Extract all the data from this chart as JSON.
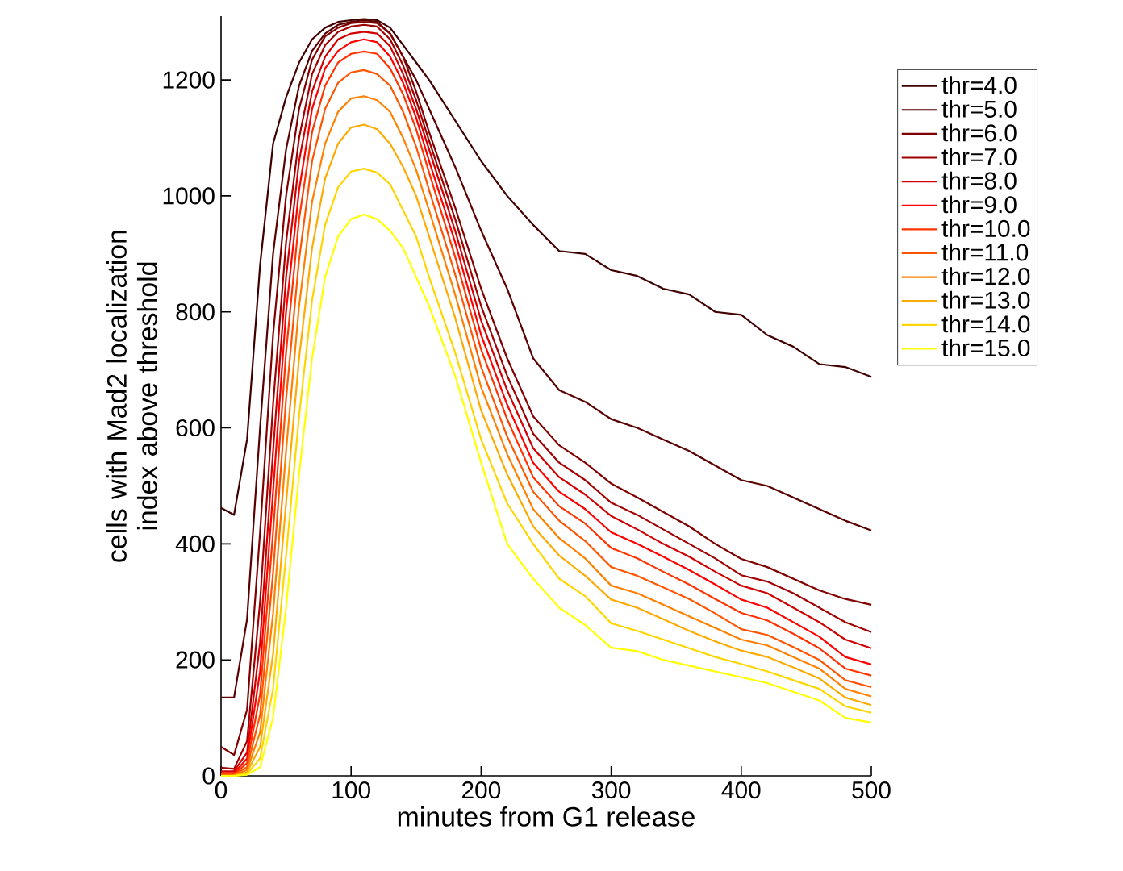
{
  "chart_data": {
    "type": "line",
    "xlabel": "minutes from G1 release",
    "ylabel": "cells with Mad2 localization index above threshold",
    "x": [
      0,
      10,
      20,
      30,
      40,
      50,
      60,
      70,
      80,
      90,
      100,
      110,
      120,
      130,
      140,
      150,
      160,
      180,
      200,
      220,
      240,
      260,
      280,
      300,
      320,
      340,
      360,
      380,
      400,
      420,
      440,
      460,
      480,
      500
    ],
    "xlim": [
      0,
      500
    ],
    "xticks": [
      0,
      100,
      200,
      300,
      400,
      500
    ],
    "ylim": [
      0,
      1310
    ],
    "yticks": [
      0,
      200,
      400,
      600,
      800,
      1000,
      1200
    ],
    "legend": "right",
    "series": [
      {
        "name": "thr=4.0",
        "color": "#400000",
        "values": [
          462,
          450,
          580,
          880,
          1090,
          1170,
          1230,
          1270,
          1290,
          1300,
          1303,
          1305,
          1303,
          1290,
          1260,
          1230,
          1200,
          1130,
          1060,
          1000,
          950,
          905,
          900,
          872,
          862,
          840,
          830,
          800,
          795,
          760,
          740,
          710,
          705,
          688
        ]
      },
      {
        "name": "thr=5.0",
        "color": "#5a0000",
        "values": [
          135,
          135,
          270,
          600,
          900,
          1080,
          1190,
          1250,
          1280,
          1295,
          1300,
          1303,
          1300,
          1280,
          1240,
          1200,
          1150,
          1050,
          940,
          840,
          720,
          665,
          645,
          615,
          600,
          580,
          560,
          535,
          510,
          500,
          480,
          460,
          440,
          423
        ]
      },
      {
        "name": "thr=6.0",
        "color": "#800000",
        "values": [
          50,
          36,
          114,
          420,
          760,
          1000,
          1150,
          1235,
          1275,
          1290,
          1298,
          1300,
          1298,
          1280,
          1240,
          1180,
          1110,
          980,
          840,
          720,
          620,
          570,
          540,
          504,
          480,
          455,
          430,
          400,
          374,
          360,
          340,
          320,
          305,
          295
        ]
      },
      {
        "name": "thr=7.0",
        "color": "#a00000",
        "values": [
          14,
          12,
          60,
          300,
          640,
          920,
          1100,
          1210,
          1260,
          1283,
          1292,
          1295,
          1292,
          1270,
          1225,
          1165,
          1095,
          960,
          810,
          690,
          590,
          540,
          510,
          471,
          450,
          425,
          400,
          375,
          346,
          335,
          315,
          290,
          265,
          248
        ]
      },
      {
        "name": "thr=8.0",
        "color": "#d00000",
        "values": [
          8,
          8,
          40,
          230,
          560,
          860,
          1060,
          1180,
          1240,
          1270,
          1280,
          1283,
          1280,
          1258,
          1210,
          1150,
          1080,
          940,
          785,
          665,
          565,
          515,
          485,
          448,
          425,
          400,
          378,
          352,
          328,
          315,
          290,
          265,
          235,
          220
        ]
      },
      {
        "name": "thr=9.0",
        "color": "#ff0000",
        "values": [
          5,
          5,
          30,
          180,
          490,
          800,
          1010,
          1150,
          1220,
          1250,
          1265,
          1270,
          1265,
          1240,
          1195,
          1135,
          1060,
          920,
          760,
          640,
          540,
          490,
          460,
          420,
          400,
          378,
          355,
          330,
          304,
          290,
          265,
          240,
          205,
          192
        ]
      },
      {
        "name": "thr=10.0",
        "color": "#ff3300",
        "values": [
          3,
          3,
          22,
          140,
          420,
          730,
          960,
          1110,
          1190,
          1230,
          1245,
          1249,
          1245,
          1220,
          1175,
          1115,
          1040,
          895,
          735,
          615,
          515,
          465,
          435,
          393,
          375,
          352,
          330,
          305,
          281,
          268,
          245,
          220,
          185,
          173
        ]
      },
      {
        "name": "thr=11.0",
        "color": "#ff5500",
        "values": [
          2,
          2,
          15,
          105,
          350,
          650,
          890,
          1060,
          1150,
          1195,
          1213,
          1217,
          1210,
          1190,
          1145,
          1085,
          1010,
          865,
          705,
          585,
          490,
          440,
          405,
          360,
          345,
          325,
          305,
          280,
          253,
          243,
          222,
          200,
          165,
          153
        ]
      },
      {
        "name": "thr=12.0",
        "color": "#ff8000",
        "values": [
          1,
          1,
          10,
          75,
          280,
          560,
          810,
          990,
          1090,
          1145,
          1168,
          1172,
          1165,
          1145,
          1100,
          1045,
          975,
          830,
          670,
          555,
          460,
          410,
          375,
          328,
          315,
          295,
          275,
          255,
          235,
          225,
          205,
          185,
          150,
          137
        ]
      },
      {
        "name": "thr=13.0",
        "color": "#ffaa00",
        "values": [
          0,
          0,
          6,
          50,
          210,
          470,
          720,
          910,
          1030,
          1090,
          1118,
          1123,
          1115,
          1090,
          1050,
          1000,
          930,
          790,
          630,
          520,
          430,
          380,
          345,
          304,
          290,
          270,
          250,
          232,
          216,
          205,
          187,
          168,
          135,
          122
        ]
      },
      {
        "name": "thr=14.0",
        "color": "#ffd500",
        "values": [
          0,
          0,
          3,
          30,
          150,
          380,
          620,
          820,
          950,
          1015,
          1042,
          1047,
          1040,
          1020,
          975,
          930,
          860,
          730,
          580,
          470,
          400,
          340,
          310,
          263,
          250,
          235,
          220,
          205,
          193,
          180,
          165,
          150,
          120,
          109
        ]
      },
      {
        "name": "thr=15.0",
        "color": "#ffff00",
        "values": [
          0,
          0,
          2,
          15,
          100,
          290,
          520,
          720,
          860,
          930,
          960,
          968,
          960,
          940,
          910,
          860,
          810,
          690,
          540,
          400,
          340,
          290,
          260,
          221,
          215,
          200,
          190,
          180,
          170,
          160,
          145,
          130,
          100,
          92
        ]
      }
    ]
  }
}
